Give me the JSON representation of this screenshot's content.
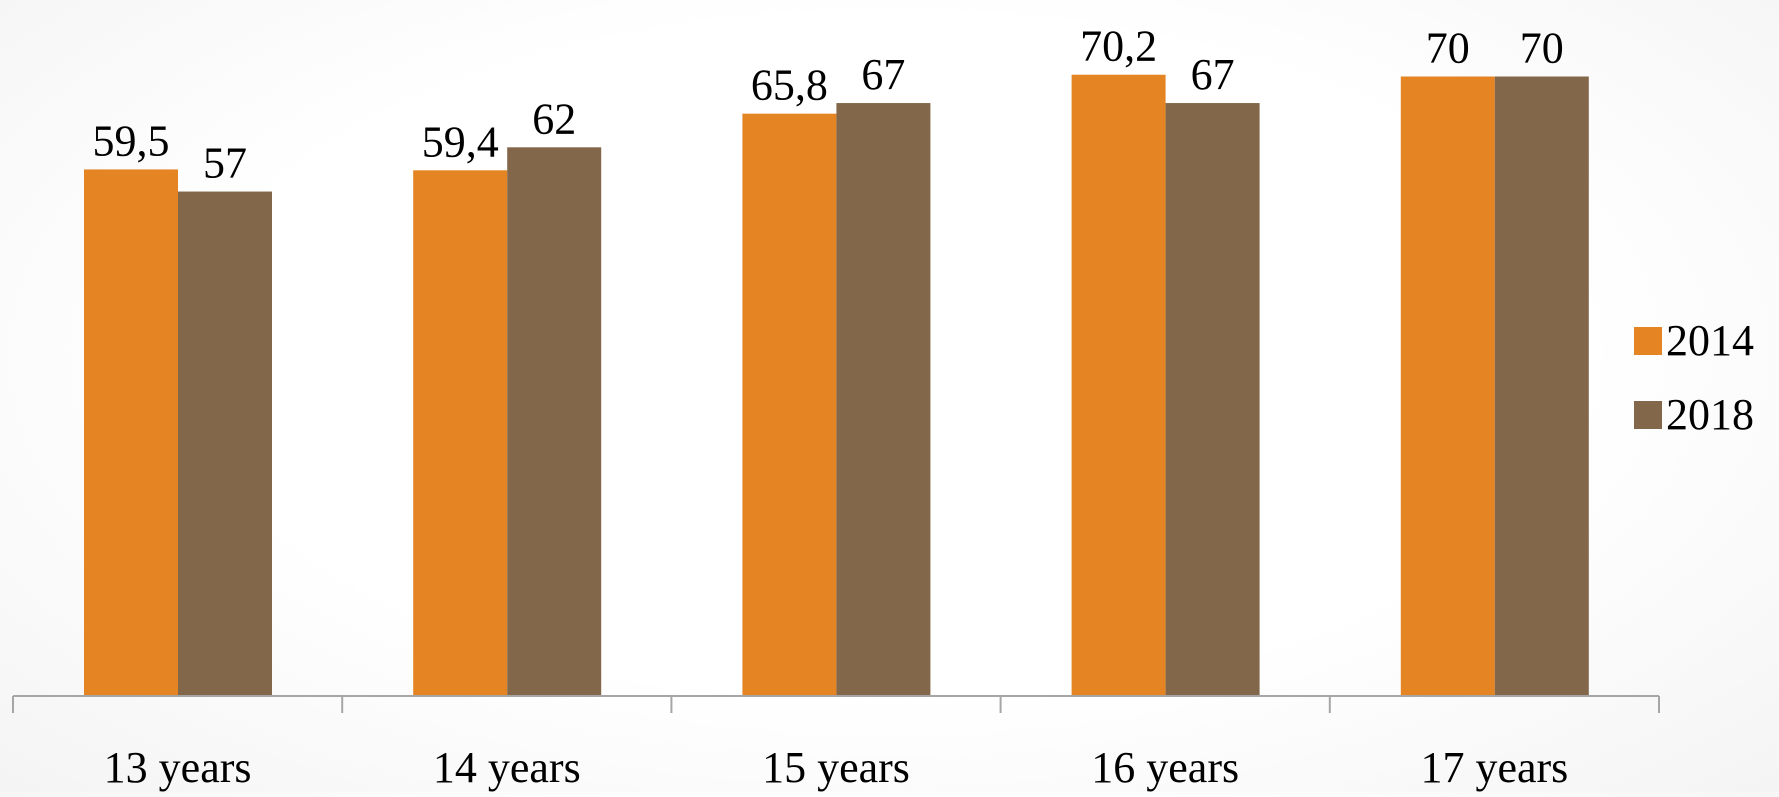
{
  "chart_data": {
    "type": "bar",
    "categories": [
      "13 years",
      "14 years",
      "15 years",
      "16 years",
      "17 years"
    ],
    "series": [
      {
        "name": "2014",
        "color": "#E58422",
        "values": [
          59.5,
          59.4,
          65.8,
          70.2,
          70
        ],
        "labels": [
          "59,5",
          "59,4",
          "65,8",
          "70,2",
          "70"
        ]
      },
      {
        "name": "2018",
        "color": "#83674A",
        "values": [
          57,
          62,
          67,
          67,
          70
        ],
        "labels": [
          "57",
          "62",
          "67",
          "67",
          "70"
        ]
      }
    ],
    "legend_position": "right",
    "grid": false,
    "axis_color": "#A6A6A6"
  }
}
